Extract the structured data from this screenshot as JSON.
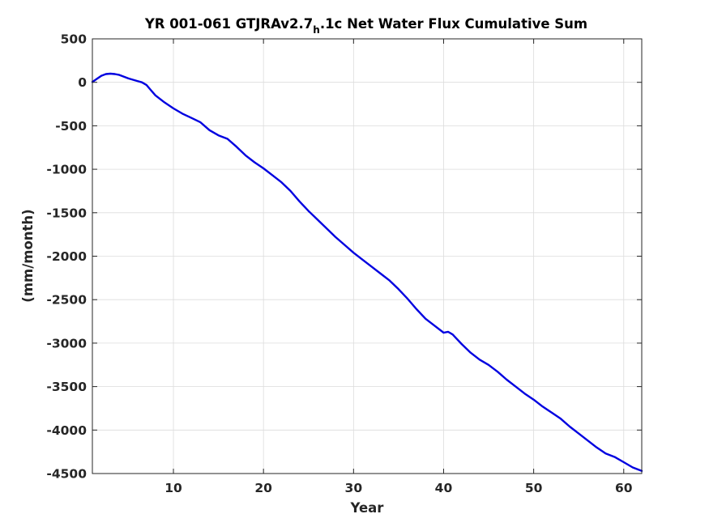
{
  "chart_data": {
    "type": "line",
    "title": "YR 001-061 GTJRAv2.7",
    "title_subscript": "h",
    "title_suffix": ".1c Net Water Flux Cumulative Sum",
    "xlabel": "Year",
    "ylabel": "(mm/month)",
    "xlim": [
      1,
      62
    ],
    "ylim": [
      -4500,
      500
    ],
    "xticks": [
      10,
      20,
      30,
      40,
      50,
      60
    ],
    "yticks": [
      500,
      0,
      -500,
      -1000,
      -1500,
      -2000,
      -2500,
      -3000,
      -3500,
      -4000,
      -4500
    ],
    "grid": true,
    "colors": {
      "series": "#0000e0",
      "axis": "#262626",
      "grid": "#dcdcdc"
    },
    "series": [
      {
        "x": [
          1,
          1.5,
          2,
          2.5,
          3,
          3.5,
          4,
          4.5,
          5,
          5.5,
          6,
          6.5,
          7,
          7.5,
          8,
          9,
          10,
          11,
          12,
          13,
          14,
          15,
          16,
          17,
          18,
          19,
          20,
          21,
          22,
          23,
          24,
          25,
          26,
          27,
          28,
          29,
          30,
          31,
          32,
          33,
          34,
          35,
          36,
          37,
          38,
          39,
          40,
          40.5,
          41,
          42,
          43,
          44,
          45,
          46,
          47,
          48,
          49,
          50,
          51,
          52,
          53,
          54,
          55,
          56,
          57,
          58,
          59,
          60,
          61,
          62
        ],
        "y": [
          5,
          40,
          75,
          95,
          100,
          95,
          85,
          65,
          45,
          30,
          15,
          0,
          -30,
          -90,
          -150,
          -230,
          -300,
          -360,
          -410,
          -460,
          -550,
          -610,
          -650,
          -740,
          -840,
          -920,
          -990,
          -1070,
          -1150,
          -1250,
          -1370,
          -1480,
          -1580,
          -1680,
          -1780,
          -1870,
          -1960,
          -2040,
          -2120,
          -2200,
          -2280,
          -2380,
          -2490,
          -2610,
          -2720,
          -2800,
          -2880,
          -2870,
          -2900,
          -3010,
          -3110,
          -3190,
          -3250,
          -3330,
          -3420,
          -3500,
          -3580,
          -3650,
          -3730,
          -3800,
          -3870,
          -3960,
          -4040,
          -4120,
          -4200,
          -4270,
          -4310,
          -4370,
          -4430,
          -4470
        ]
      }
    ]
  }
}
